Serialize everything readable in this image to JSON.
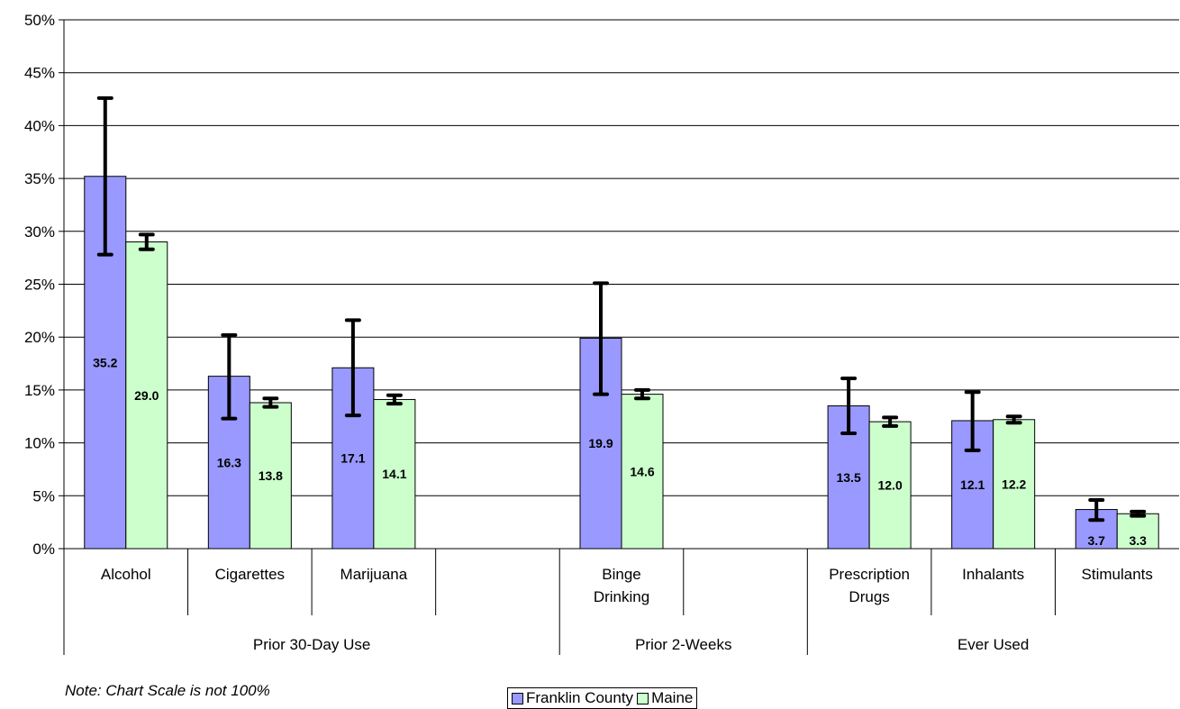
{
  "colors": {
    "franklin": "#9999ff",
    "maine": "#ccffcc",
    "error_bar": "#000000"
  },
  "note": "Note: Chart Scale is not 100%",
  "chart_data": {
    "type": "bar",
    "y_ticks": [
      "0%",
      "5%",
      "10%",
      "15%",
      "20%",
      "25%",
      "30%",
      "35%",
      "40%",
      "45%",
      "50%"
    ],
    "ylim": [
      0,
      50
    ],
    "grid": true,
    "legend_position": "bottom",
    "groups": [
      {
        "label": "Prior 30-Day Use",
        "categories": [
          "Alcohol",
          "Cigarettes",
          "Marijuana",
          ""
        ]
      },
      {
        "label": "Prior 2-Weeks",
        "categories": [
          "Binge Drinking",
          ""
        ]
      },
      {
        "label": "Ever Used",
        "categories": [
          "Prescription Drugs",
          "Inhalants",
          "Stimulants"
        ]
      }
    ],
    "categories": [
      "Alcohol",
      "Cigarettes",
      "Marijuana",
      "",
      "Binge Drinking",
      "",
      "Prescription Drugs",
      "Inhalants",
      "Stimulants"
    ],
    "series": [
      {
        "name": "Franklin County",
        "values": [
          35.2,
          16.3,
          17.1,
          null,
          19.9,
          null,
          13.5,
          12.1,
          3.7
        ],
        "labels": [
          "35.2",
          "16.3",
          "17.1",
          "",
          "19.9",
          "",
          "13.5",
          "12.1",
          "3.7"
        ],
        "error_low": [
          27.8,
          12.3,
          12.6,
          null,
          14.6,
          null,
          10.9,
          9.3,
          2.7
        ],
        "error_high": [
          42.6,
          20.2,
          21.6,
          null,
          25.1,
          null,
          16.1,
          14.8,
          4.6
        ]
      },
      {
        "name": "Maine",
        "values": [
          29.0,
          13.8,
          14.1,
          null,
          14.6,
          null,
          12.0,
          12.2,
          3.3
        ],
        "labels": [
          "29.0",
          "13.8",
          "14.1",
          "",
          "14.6",
          "",
          "12.0",
          "12.2",
          "3.3"
        ],
        "error_low": [
          28.3,
          13.4,
          13.7,
          null,
          14.2,
          null,
          11.6,
          11.9,
          3.1
        ],
        "error_high": [
          29.7,
          14.2,
          14.5,
          null,
          15.0,
          null,
          12.4,
          12.5,
          3.5
        ]
      }
    ]
  }
}
